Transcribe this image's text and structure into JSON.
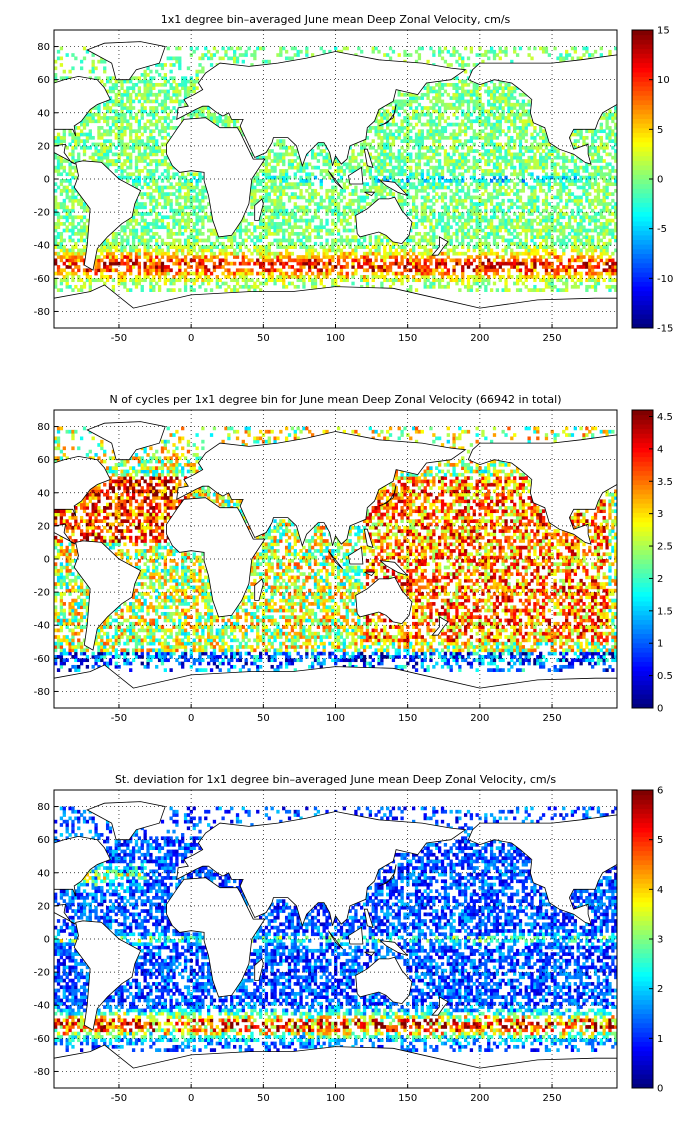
{
  "chart_data": [
    {
      "type": "heatmap",
      "title": "1x1 degree bin–averaged June mean Deep Zonal Velocity, cm/s",
      "xlim": [
        -95,
        295
      ],
      "ylim": [
        -90,
        90
      ],
      "x_ticks": [
        -50,
        0,
        50,
        100,
        150,
        200,
        250
      ],
      "y_ticks": [
        80,
        60,
        40,
        20,
        0,
        -20,
        -40,
        -60,
        -80
      ],
      "grid": true,
      "colorbar": {
        "min": -15,
        "max": 15,
        "ticks": [
          15,
          10,
          5,
          0,
          -5,
          -10,
          -15
        ],
        "colormap": "jet"
      },
      "field": "zonal_velocity",
      "value_note": "many small bins; values mostly near 0, strong positive in Southern Ocean band ~-45 to -60 lat, negative band near equator"
    },
    {
      "type": "heatmap",
      "title": "N of cycles per 1x1 degree bin for June mean Deep Zonal Velocity (66942 in total)",
      "xlim": [
        -95,
        295
      ],
      "ylim": [
        -90,
        90
      ],
      "x_ticks": [
        -50,
        0,
        50,
        100,
        150,
        200,
        250
      ],
      "y_ticks": [
        80,
        60,
        40,
        20,
        0,
        -20,
        -40,
        -60,
        -80
      ],
      "grid": true,
      "colorbar": {
        "min": 0,
        "max": 4.6,
        "ticks": [
          4.5,
          4,
          3.5,
          3,
          2.5,
          2,
          1.5,
          1,
          0.5,
          0
        ],
        "colormap": "jet"
      },
      "field": "cycle_count",
      "value_note": "high counts in North Atlantic and western Pacific; lower counts near -60 lat"
    },
    {
      "type": "heatmap",
      "title": "St. deviation for 1x1 degree bin–averaged June mean Deep Zonal Velocity, cm/s",
      "xlim": [
        -95,
        295
      ],
      "ylim": [
        -90,
        90
      ],
      "x_ticks": [
        -50,
        0,
        50,
        100,
        150,
        200,
        250
      ],
      "y_ticks": [
        80,
        60,
        40,
        20,
        0,
        -20,
        -40,
        -60,
        -80
      ],
      "grid": true,
      "colorbar": {
        "min": 0,
        "max": 6,
        "ticks": [
          6,
          5,
          4,
          3,
          2,
          1,
          0
        ],
        "colormap": "jet"
      },
      "field": "zonal_velocity_std",
      "value_note": "mostly low (blue); high along Southern Ocean band, equator and Gulf Stream"
    }
  ]
}
